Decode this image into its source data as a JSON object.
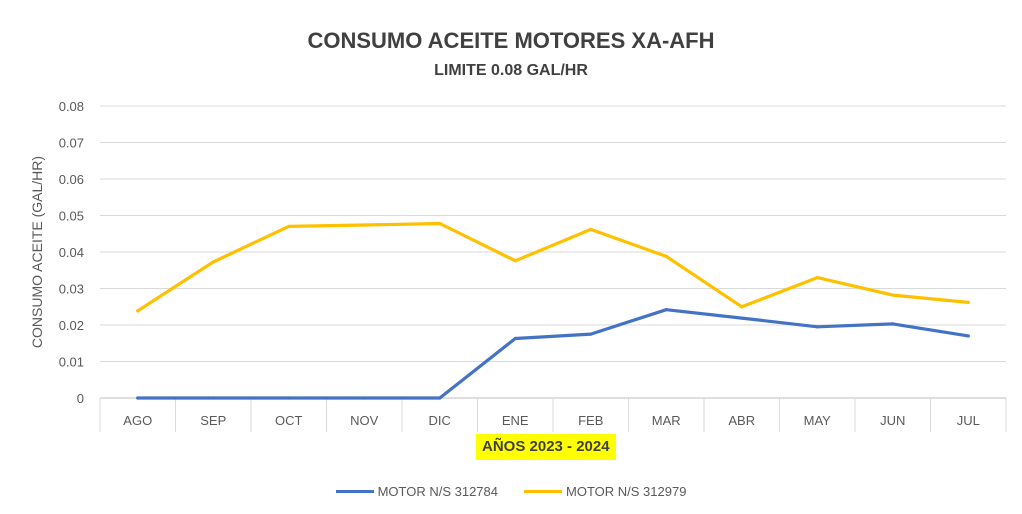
{
  "chart_data": {
    "type": "line",
    "title": "CONSUMO ACEITE MOTORES XA-AFH",
    "subtitle": "LIMITE 0.08 GAL/HR",
    "xlabel": "AÑOS 2023 - 2024",
    "ylabel": "CONSUMO ACEITE (GAL/HR)",
    "categories": [
      "AGO",
      "SEP",
      "OCT",
      "NOV",
      "DIC",
      "ENE",
      "FEB",
      "MAR",
      "ABR",
      "MAY",
      "JUN",
      "JUL"
    ],
    "ylim": [
      0,
      0.08
    ],
    "yticks": [
      "0",
      "0.01",
      "0.02",
      "0.03",
      "0.04",
      "0.05",
      "0.06",
      "0.07",
      "0.08"
    ],
    "grid": true,
    "legend_position": "bottom",
    "series": [
      {
        "name": "MOTOR N/S 312784",
        "color": "#4472c4",
        "values": [
          0,
          0,
          0,
          0,
          0,
          0.0163,
          0.0175,
          0.0242,
          0.0219,
          0.0195,
          0.0203,
          0.017
        ]
      },
      {
        "name": "MOTOR N/S 312979",
        "color": "#ffc000",
        "values": [
          0.0239,
          0.0373,
          0.047,
          0.0474,
          0.0478,
          0.0376,
          0.0462,
          0.0388,
          0.025,
          0.033,
          0.0282,
          0.0262
        ]
      }
    ]
  }
}
